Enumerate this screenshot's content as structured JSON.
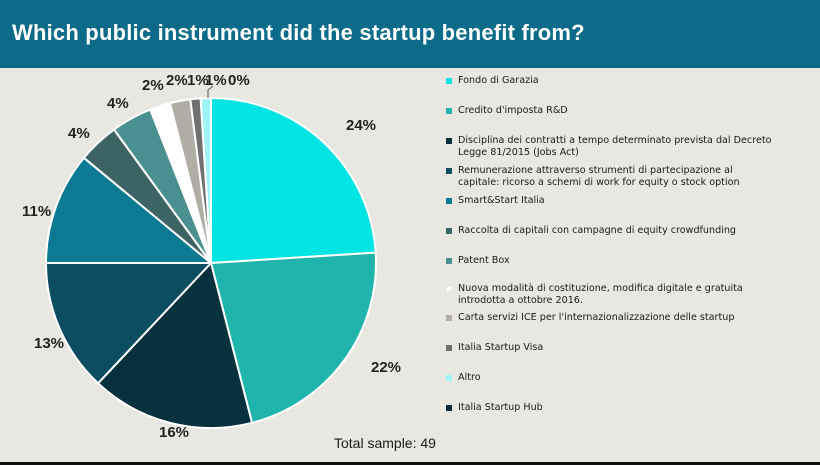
{
  "header": {
    "title": "Which public instrument did the startup benefit from?"
  },
  "chart_data": {
    "type": "pie",
    "title": "Which public instrument did the startup benefit from?",
    "categories": [
      "Fondo di Garazia",
      "Credito d'imposta R&D",
      "Disciplina dei contratti a tempo determinato prevista dal Decreto Legge 81/2015 (Jobs Act)",
      "Remunerazione attraverso strumenti di partecipazione al capitale: ricorso a schemi di work for equity o stock option",
      "Smart&Start Italia",
      "Raccolta di capitali con campagne di equity crowdfunding",
      "Patent Box",
      "Nuova modalità di costituzione, modifica digitale e gratuita introdotta a ottobre 2016.",
      "Carta servizi ICE per l'internazionalizzazione delle startup",
      "Italia Startup Visa",
      "Altro",
      "Italia Startup Hub"
    ],
    "values": [
      24,
      22,
      16,
      13,
      11,
      4,
      4,
      2,
      2,
      1,
      1,
      0
    ],
    "labels": [
      "24%",
      "22%",
      "16%",
      "13%",
      "11%",
      "4%",
      "4%",
      "2%",
      "2%",
      "1%",
      "1%",
      "0%"
    ],
    "colors": [
      "#00e4e4",
      "#1fb5ad",
      "#07313c",
      "#0c4d62",
      "#0c7a93",
      "#3d6464",
      "#4b9090",
      "#ffffff",
      "#b0aca6",
      "#707070",
      "#9ff3f3",
      "#062a38"
    ],
    "legend_position": "right",
    "total_sample": "Total sample: 49"
  },
  "legend": {
    "items": [
      {
        "lines": [
          "Fondo di Garazia"
        ]
      },
      {
        "lines": [
          "Credito d'imposta R&D"
        ]
      },
      {
        "lines": [
          "Disciplina dei contratti a tempo determinato prevista dal Decreto",
          "Legge 81/2015 (Jobs Act)"
        ]
      },
      {
        "lines": [
          "Remunerazione attraverso strumenti di partecipazione al",
          "capitale: ricorso a schemi di work for equity o stock option"
        ]
      },
      {
        "lines": [
          "Smart&Start Italia"
        ]
      },
      {
        "lines": [
          "Raccolta di capitali con campagne di equity crowdfunding"
        ]
      },
      {
        "lines": [
          "Patent Box"
        ]
      },
      {
        "lines": [
          "Nuova modalità di costituzione, modifica digitale e gratuita",
          "introdotta a ottobre 2016."
        ]
      },
      {
        "lines": [
          "Carta servizi ICE per l'internazionalizzazione delle startup"
        ]
      },
      {
        "lines": [
          "Italia Startup Visa"
        ]
      },
      {
        "lines": [
          "Altro"
        ]
      },
      {
        "lines": [
          "Italia Startup Hub"
        ]
      }
    ]
  },
  "footer": {
    "total": "Total sample: 49"
  }
}
